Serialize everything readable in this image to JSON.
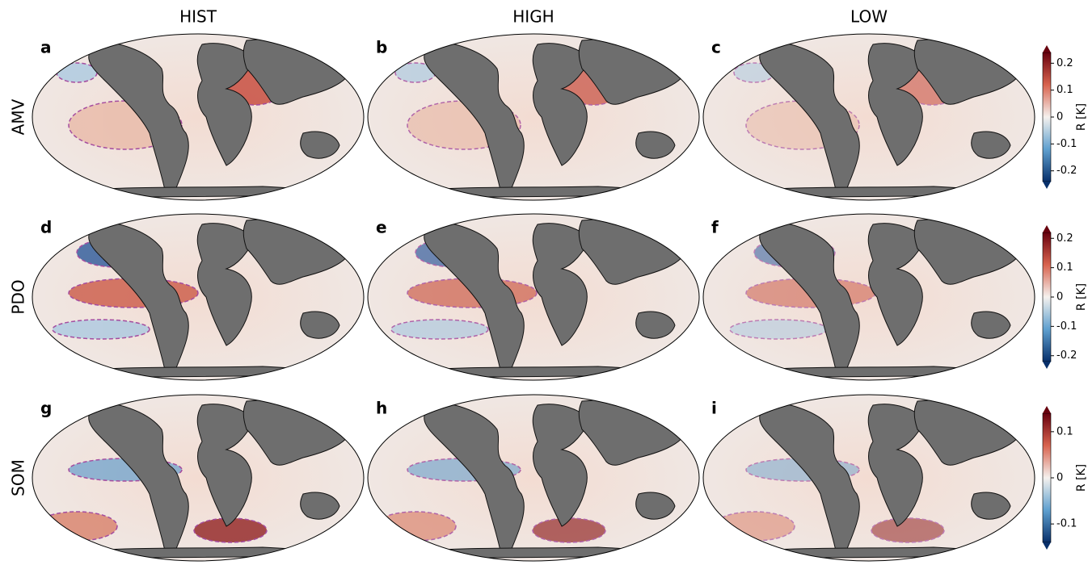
{
  "columns": [
    "HIST",
    "HIGH",
    "LOW"
  ],
  "rows": [
    {
      "label": "AMV",
      "panels": [
        "a",
        "b",
        "c"
      ],
      "colorbar": {
        "label": "R [K]",
        "lim": [
          -0.24,
          0.24
        ],
        "ticks": [
          0.2,
          0.1,
          0,
          -0.1,
          -0.2
        ]
      }
    },
    {
      "label": "PDO",
      "panels": [
        "d",
        "e",
        "f"
      ],
      "colorbar": {
        "label": "R [K]",
        "lim": [
          -0.22,
          0.22
        ],
        "ticks": [
          0.2,
          0.1,
          0,
          -0.1,
          -0.2
        ]
      }
    },
    {
      "label": "SOM",
      "panels": [
        "g",
        "h",
        "i"
      ],
      "colorbar": {
        "label": "R [K]",
        "lim": [
          -0.14,
          0.14
        ],
        "ticks": [
          0.1,
          0,
          -0.1
        ]
      }
    }
  ]
}
